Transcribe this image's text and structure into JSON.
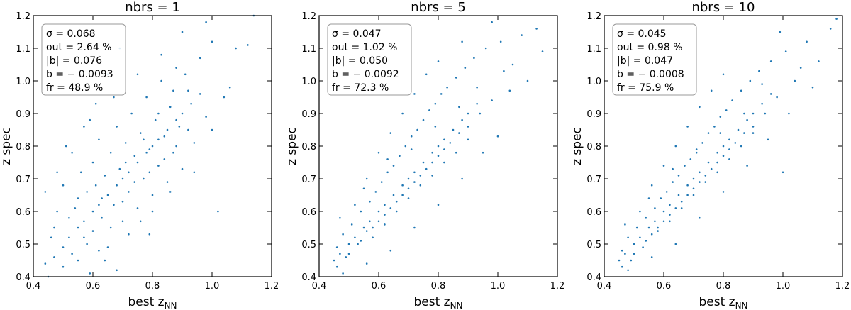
{
  "chart_data": [
    {
      "type": "scatter",
      "title": "nbrs = 1",
      "xlabel": "best z_NN",
      "ylabel": "z spec",
      "xlim": [
        0.4,
        1.2
      ],
      "ylim": [
        0.4,
        1.2
      ],
      "xticks": [
        "0.4",
        "0.6",
        "0.8",
        "1.0",
        "1.2"
      ],
      "yticks": [
        "0.4",
        "0.5",
        "0.6",
        "0.7",
        "0.8",
        "0.9",
        "1.0",
        "1.1",
        "1.2"
      ],
      "grid": false,
      "stats": [
        "σ = 0.068",
        "out = 2.64 %",
        "|b| = 0.076",
        "b = − 0.0093",
        "fr = 48.9 %"
      ],
      "stats_position": "top-left",
      "point_color": "#1f77b4",
      "points": [
        [
          0.44,
          0.44
        ],
        [
          0.47,
          0.46
        ],
        [
          0.5,
          0.49
        ],
        [
          0.52,
          0.52
        ],
        [
          0.55,
          0.55
        ],
        [
          0.57,
          0.57
        ],
        [
          0.6,
          0.6
        ],
        [
          0.62,
          0.62
        ],
        [
          0.65,
          0.65
        ],
        [
          0.68,
          0.68
        ],
        [
          0.7,
          0.7
        ],
        [
          0.72,
          0.72
        ],
        [
          0.75,
          0.75
        ],
        [
          0.78,
          0.78
        ],
        [
          0.8,
          0.8
        ],
        [
          0.82,
          0.82
        ],
        [
          0.85,
          0.85
        ],
        [
          0.88,
          0.88
        ],
        [
          0.9,
          0.9
        ],
        [
          0.93,
          0.93
        ],
        [
          0.96,
          0.96
        ],
        [
          0.46,
          0.52
        ],
        [
          0.48,
          0.6
        ],
        [
          0.5,
          0.68
        ],
        [
          0.52,
          0.58
        ],
        [
          0.53,
          0.47
        ],
        [
          0.55,
          0.64
        ],
        [
          0.56,
          0.72
        ],
        [
          0.58,
          0.5
        ],
        [
          0.58,
          0.66
        ],
        [
          0.6,
          0.54
        ],
        [
          0.6,
          0.75
        ],
        [
          0.61,
          0.68
        ],
        [
          0.62,
          0.82
        ],
        [
          0.63,
          0.58
        ],
        [
          0.64,
          0.71
        ],
        [
          0.65,
          0.49
        ],
        [
          0.66,
          0.78
        ],
        [
          0.67,
          0.62
        ],
        [
          0.68,
          0.86
        ],
        [
          0.69,
          0.73
        ],
        [
          0.7,
          0.57
        ],
        [
          0.71,
          0.81
        ],
        [
          0.72,
          0.66
        ],
        [
          0.73,
          0.9
        ],
        [
          0.74,
          0.77
        ],
        [
          0.75,
          0.61
        ],
        [
          0.76,
          0.84
        ],
        [
          0.77,
          0.7
        ],
        [
          0.78,
          0.95
        ],
        [
          0.79,
          0.79
        ],
        [
          0.8,
          0.65
        ],
        [
          0.81,
          0.88
        ],
        [
          0.82,
          0.74
        ],
        [
          0.83,
          1.0
        ],
        [
          0.84,
          0.83
        ],
        [
          0.85,
          0.69
        ],
        [
          0.86,
          0.92
        ],
        [
          0.87,
          0.78
        ],
        [
          0.88,
          1.04
        ],
        [
          0.89,
          0.86
        ],
        [
          0.9,
          0.73
        ],
        [
          0.92,
          0.97
        ],
        [
          0.94,
          0.81
        ],
        [
          0.96,
          1.07
        ],
        [
          0.98,
          0.89
        ],
        [
          1.0,
          1.12
        ],
        [
          1.04,
          0.95
        ],
        [
          1.08,
          1.1
        ],
        [
          0.45,
          0.4
        ],
        [
          0.5,
          0.43
        ],
        [
          0.55,
          0.45
        ],
        [
          0.57,
          0.52
        ],
        [
          0.59,
          0.41
        ],
        [
          0.62,
          0.48
        ],
        [
          0.66,
          0.55
        ],
        [
          0.7,
          0.63
        ],
        [
          0.74,
          0.69
        ],
        [
          0.79,
          0.72
        ],
        [
          0.84,
          0.76
        ],
        [
          0.88,
          0.8
        ],
        [
          0.92,
          0.85
        ],
        [
          0.53,
          0.78
        ],
        [
          0.57,
          0.86
        ],
        [
          0.61,
          0.93
        ],
        [
          0.65,
          1.02
        ],
        [
          0.69,
          1.1
        ],
        [
          0.48,
          0.72
        ],
        [
          0.44,
          0.66
        ],
        [
          0.64,
          0.45
        ],
        [
          0.72,
          0.53
        ],
        [
          0.76,
          0.57
        ],
        [
          0.8,
          0.6
        ],
        [
          0.86,
          0.66
        ],
        [
          0.94,
          0.72
        ],
        [
          1.0,
          0.85
        ],
        [
          1.06,
          0.98
        ],
        [
          1.12,
          1.11
        ],
        [
          0.98,
          1.18
        ],
        [
          0.9,
          1.15
        ],
        [
          0.83,
          1.08
        ],
        [
          0.75,
          1.02
        ],
        [
          0.67,
          0.95
        ],
        [
          0.59,
          0.88
        ],
        [
          0.51,
          0.8
        ],
        [
          0.47,
          0.55
        ],
        [
          0.54,
          0.61
        ],
        [
          0.63,
          0.64
        ],
        [
          0.71,
          0.75
        ],
        [
          0.77,
          0.82
        ],
        [
          0.82,
          0.9
        ],
        [
          0.87,
          0.97
        ],
        [
          0.91,
          1.02
        ],
        [
          1.02,
          0.6
        ],
        [
          0.79,
          0.53
        ],
        [
          0.68,
          0.42
        ],
        [
          1.14,
          1.2
        ]
      ]
    },
    {
      "type": "scatter",
      "title": "nbrs = 5",
      "xlabel": "best z_NN",
      "ylabel": "z spec",
      "xlim": [
        0.4,
        1.2
      ],
      "ylim": [
        0.4,
        1.2
      ],
      "xticks": [
        "0.4",
        "0.6",
        "0.8",
        "1.0",
        "1.2"
      ],
      "yticks": [
        "0.4",
        "0.5",
        "0.6",
        "0.7",
        "0.8",
        "0.9",
        "1.0",
        "1.1",
        "1.2"
      ],
      "grid": false,
      "stats": [
        "σ = 0.047",
        "out = 1.02 %",
        "|b| = 0.050",
        "b = − 0.0092",
        "fr = 72.3 %"
      ],
      "stats_position": "top-left",
      "point_color": "#1f77b4",
      "points": [
        [
          0.45,
          0.45
        ],
        [
          0.47,
          0.47
        ],
        [
          0.5,
          0.5
        ],
        [
          0.52,
          0.52
        ],
        [
          0.55,
          0.55
        ],
        [
          0.57,
          0.57
        ],
        [
          0.6,
          0.6
        ],
        [
          0.62,
          0.62
        ],
        [
          0.65,
          0.65
        ],
        [
          0.68,
          0.68
        ],
        [
          0.7,
          0.7
        ],
        [
          0.72,
          0.72
        ],
        [
          0.75,
          0.75
        ],
        [
          0.78,
          0.78
        ],
        [
          0.8,
          0.8
        ],
        [
          0.82,
          0.82
        ],
        [
          0.85,
          0.85
        ],
        [
          0.88,
          0.88
        ],
        [
          0.9,
          0.9
        ],
        [
          0.93,
          0.93
        ],
        [
          0.46,
          0.49
        ],
        [
          0.48,
          0.53
        ],
        [
          0.49,
          0.46
        ],
        [
          0.51,
          0.56
        ],
        [
          0.53,
          0.5
        ],
        [
          0.54,
          0.6
        ],
        [
          0.56,
          0.54
        ],
        [
          0.57,
          0.63
        ],
        [
          0.58,
          0.52
        ],
        [
          0.59,
          0.66
        ],
        [
          0.6,
          0.57
        ],
        [
          0.61,
          0.69
        ],
        [
          0.62,
          0.59
        ],
        [
          0.63,
          0.72
        ],
        [
          0.64,
          0.61
        ],
        [
          0.65,
          0.74
        ],
        [
          0.66,
          0.63
        ],
        [
          0.67,
          0.77
        ],
        [
          0.68,
          0.65
        ],
        [
          0.69,
          0.8
        ],
        [
          0.7,
          0.67
        ],
        [
          0.71,
          0.83
        ],
        [
          0.72,
          0.69
        ],
        [
          0.73,
          0.85
        ],
        [
          0.74,
          0.71
        ],
        [
          0.75,
          0.88
        ],
        [
          0.76,
          0.73
        ],
        [
          0.77,
          0.91
        ],
        [
          0.78,
          0.75
        ],
        [
          0.79,
          0.93
        ],
        [
          0.8,
          0.77
        ],
        [
          0.81,
          0.96
        ],
        [
          0.82,
          0.79
        ],
        [
          0.83,
          0.98
        ],
        [
          0.84,
          0.81
        ],
        [
          0.86,
          1.01
        ],
        [
          0.87,
          0.84
        ],
        [
          0.89,
          1.04
        ],
        [
          0.9,
          0.86
        ],
        [
          0.92,
          1.07
        ],
        [
          0.94,
          0.9
        ],
        [
          0.96,
          1.1
        ],
        [
          0.98,
          0.94
        ],
        [
          1.01,
          1.12
        ],
        [
          1.04,
          0.97
        ],
        [
          1.08,
          1.14
        ],
        [
          1.13,
          1.16
        ],
        [
          1.15,
          1.09
        ],
        [
          0.46,
          0.43
        ],
        [
          0.5,
          0.47
        ],
        [
          0.54,
          0.51
        ],
        [
          0.58,
          0.55
        ],
        [
          0.62,
          0.56
        ],
        [
          0.66,
          0.6
        ],
        [
          0.7,
          0.64
        ],
        [
          0.74,
          0.68
        ],
        [
          0.78,
          0.71
        ],
        [
          0.82,
          0.75
        ],
        [
          0.86,
          0.78
        ],
        [
          0.9,
          0.82
        ],
        [
          0.52,
          0.62
        ],
        [
          0.56,
          0.7
        ],
        [
          0.6,
          0.78
        ],
        [
          0.64,
          0.84
        ],
        [
          0.68,
          0.9
        ],
        [
          0.72,
          0.96
        ],
        [
          0.76,
          1.02
        ],
        [
          0.8,
          1.06
        ],
        [
          0.48,
          0.41
        ],
        [
          0.56,
          0.44
        ],
        [
          0.64,
          0.48
        ],
        [
          0.72,
          0.55
        ],
        [
          0.8,
          0.62
        ],
        [
          0.88,
          0.7
        ],
        [
          0.95,
          0.78
        ],
        [
          1.0,
          0.83
        ],
        [
          1.05,
          1.05
        ],
        [
          1.1,
          1.0
        ],
        [
          0.98,
          1.18
        ],
        [
          0.88,
          1.12
        ],
        [
          0.47,
          0.58
        ],
        [
          0.55,
          0.67
        ],
        [
          0.63,
          0.76
        ],
        [
          0.71,
          0.79
        ],
        [
          0.79,
          0.86
        ],
        [
          0.87,
          0.92
        ],
        [
          0.93,
          0.98
        ],
        [
          1.02,
          1.03
        ]
      ]
    },
    {
      "type": "scatter",
      "title": "nbrs = 10",
      "xlabel": "best z_NN",
      "ylabel": "z spec",
      "xlim": [
        0.4,
        1.2
      ],
      "ylim": [
        0.4,
        1.2
      ],
      "xticks": [
        "0.4",
        "0.6",
        "0.8",
        "1.0",
        "1.2"
      ],
      "yticks": [
        "0.4",
        "0.5",
        "0.6",
        "0.7",
        "0.8",
        "0.9",
        "1.0",
        "1.1",
        "1.2"
      ],
      "grid": false,
      "stats": [
        "σ = 0.045",
        "out = 0.98 %",
        "|b| = 0.047",
        "b = − 0.0008",
        "fr = 75.9 %"
      ],
      "stats_position": "top-left",
      "point_color": "#1f77b4",
      "points": [
        [
          0.45,
          0.45
        ],
        [
          0.47,
          0.47
        ],
        [
          0.5,
          0.5
        ],
        [
          0.52,
          0.52
        ],
        [
          0.55,
          0.55
        ],
        [
          0.57,
          0.57
        ],
        [
          0.6,
          0.6
        ],
        [
          0.62,
          0.62
        ],
        [
          0.65,
          0.65
        ],
        [
          0.68,
          0.68
        ],
        [
          0.7,
          0.7
        ],
        [
          0.72,
          0.72
        ],
        [
          0.75,
          0.75
        ],
        [
          0.78,
          0.78
        ],
        [
          0.8,
          0.8
        ],
        [
          0.82,
          0.82
        ],
        [
          0.85,
          0.85
        ],
        [
          0.88,
          0.88
        ],
        [
          0.9,
          0.9
        ],
        [
          0.93,
          0.93
        ],
        [
          0.96,
          0.96
        ],
        [
          0.46,
          0.48
        ],
        [
          0.48,
          0.52
        ],
        [
          0.49,
          0.45
        ],
        [
          0.51,
          0.55
        ],
        [
          0.53,
          0.49
        ],
        [
          0.54,
          0.58
        ],
        [
          0.56,
          0.53
        ],
        [
          0.57,
          0.61
        ],
        [
          0.58,
          0.54
        ],
        [
          0.59,
          0.64
        ],
        [
          0.6,
          0.57
        ],
        [
          0.61,
          0.66
        ],
        [
          0.62,
          0.59
        ],
        [
          0.63,
          0.69
        ],
        [
          0.64,
          0.61
        ],
        [
          0.65,
          0.71
        ],
        [
          0.66,
          0.63
        ],
        [
          0.67,
          0.74
        ],
        [
          0.68,
          0.65
        ],
        [
          0.69,
          0.76
        ],
        [
          0.7,
          0.67
        ],
        [
          0.71,
          0.79
        ],
        [
          0.72,
          0.69
        ],
        [
          0.73,
          0.81
        ],
        [
          0.74,
          0.71
        ],
        [
          0.75,
          0.84
        ],
        [
          0.76,
          0.73
        ],
        [
          0.77,
          0.86
        ],
        [
          0.78,
          0.75
        ],
        [
          0.79,
          0.89
        ],
        [
          0.8,
          0.77
        ],
        [
          0.81,
          0.91
        ],
        [
          0.82,
          0.79
        ],
        [
          0.83,
          0.94
        ],
        [
          0.84,
          0.81
        ],
        [
          0.86,
          0.97
        ],
        [
          0.87,
          0.84
        ],
        [
          0.89,
          1.0
        ],
        [
          0.9,
          0.86
        ],
        [
          0.92,
          1.03
        ],
        [
          0.94,
          0.9
        ],
        [
          0.96,
          1.06
        ],
        [
          0.98,
          0.95
        ],
        [
          1.01,
          1.09
        ],
        [
          1.04,
          1.0
        ],
        [
          1.08,
          1.12
        ],
        [
          1.12,
          1.06
        ],
        [
          1.16,
          1.16
        ],
        [
          0.46,
          0.43
        ],
        [
          0.5,
          0.47
        ],
        [
          0.54,
          0.51
        ],
        [
          0.58,
          0.55
        ],
        [
          0.62,
          0.57
        ],
        [
          0.66,
          0.61
        ],
        [
          0.7,
          0.65
        ],
        [
          0.74,
          0.69
        ],
        [
          0.78,
          0.72
        ],
        [
          0.82,
          0.76
        ],
        [
          0.86,
          0.8
        ],
        [
          0.9,
          0.84
        ],
        [
          0.52,
          0.6
        ],
        [
          0.56,
          0.68
        ],
        [
          0.6,
          0.74
        ],
        [
          0.64,
          0.8
        ],
        [
          0.68,
          0.86
        ],
        [
          0.72,
          0.92
        ],
        [
          0.76,
          0.97
        ],
        [
          0.8,
          1.02
        ],
        [
          0.48,
          0.42
        ],
        [
          0.56,
          0.46
        ],
        [
          0.64,
          0.5
        ],
        [
          0.72,
          0.58
        ],
        [
          0.8,
          0.66
        ],
        [
          0.88,
          0.74
        ],
        [
          0.95,
          0.82
        ],
        [
          1.02,
          0.9
        ],
        [
          1.06,
          1.04
        ],
        [
          1.1,
          0.98
        ],
        [
          1.18,
          1.19
        ],
        [
          0.99,
          1.15
        ],
        [
          0.47,
          0.56
        ],
        [
          0.55,
          0.64
        ],
        [
          0.63,
          0.73
        ],
        [
          0.71,
          0.78
        ],
        [
          0.79,
          0.84
        ],
        [
          0.87,
          0.9
        ],
        [
          0.93,
          0.99
        ],
        [
          1.0,
          0.72
        ]
      ]
    }
  ]
}
